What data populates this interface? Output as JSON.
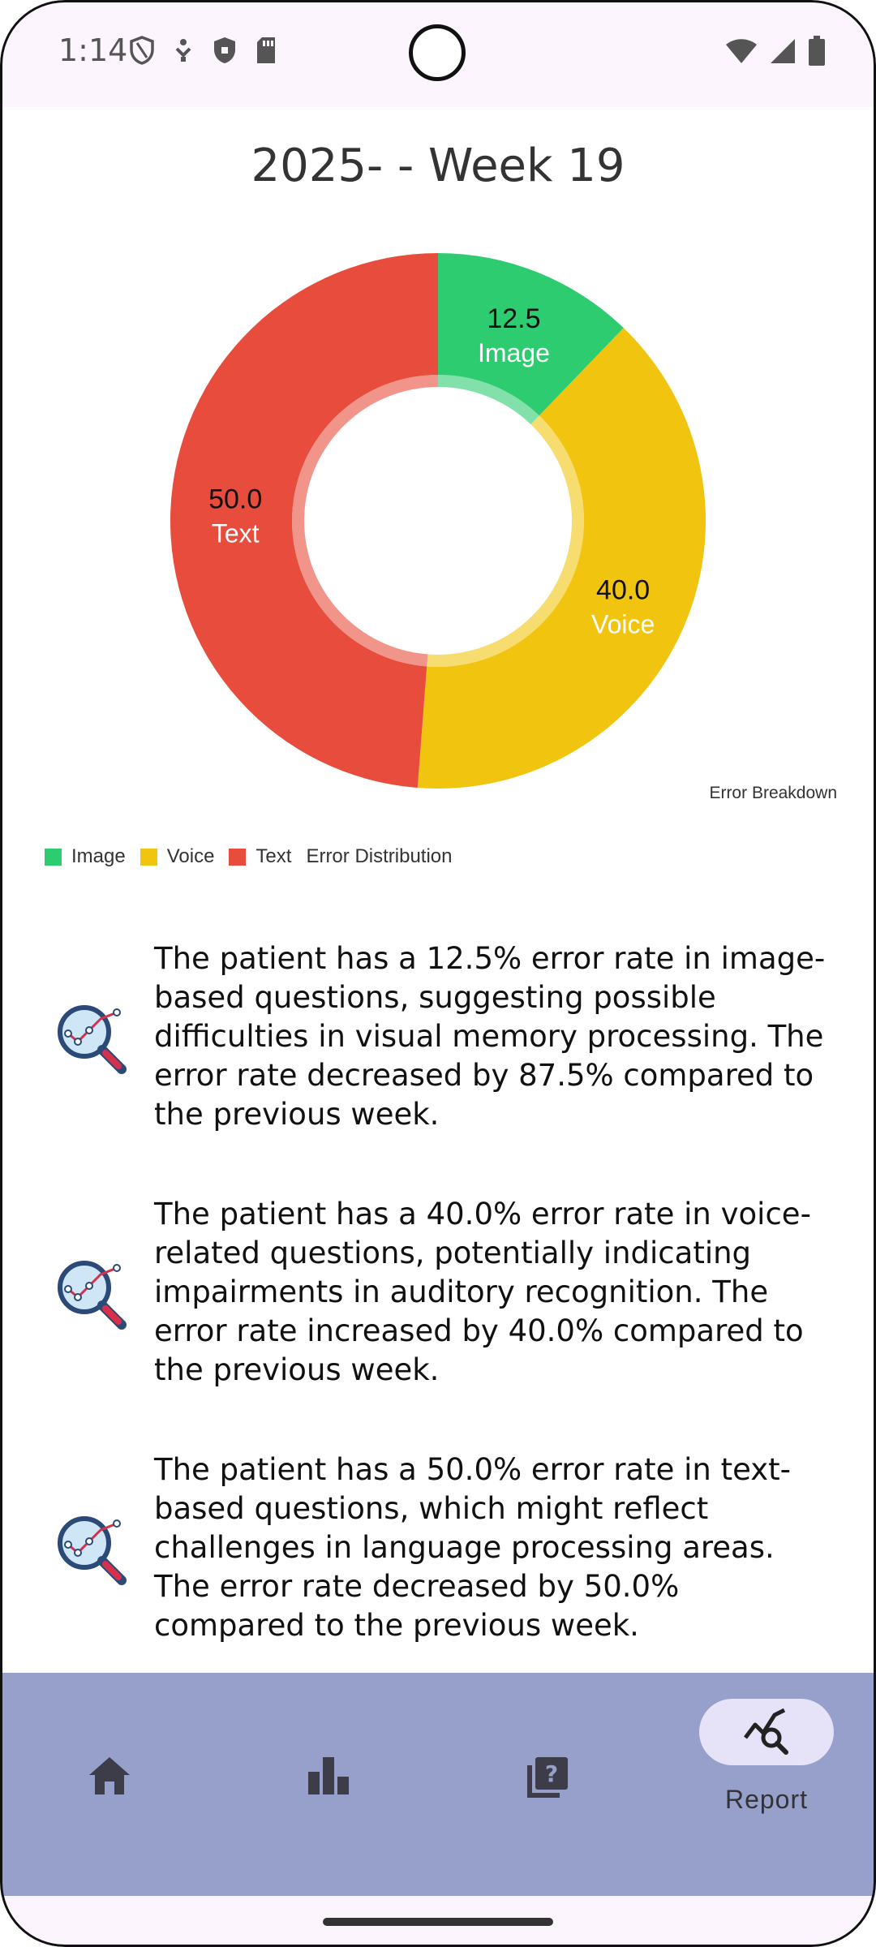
{
  "status_bar": {
    "time": "1:14"
  },
  "header": {
    "title": "2025- - Week 19"
  },
  "chart_data": {
    "type": "pie",
    "donut": true,
    "categories": [
      "Image",
      "Voice",
      "Text"
    ],
    "values": [
      12.5,
      40.0,
      50.0
    ],
    "value_labels": [
      "12.5",
      "40.0",
      "50.0"
    ],
    "colors": [
      "#2ecc71",
      "#f1c40f",
      "#e74c3c"
    ],
    "description": "Error Breakdown",
    "legend": {
      "placement": "bottom-left",
      "items": [
        "Image",
        "Voice",
        "Text"
      ],
      "trailing_label": "Error Distribution"
    }
  },
  "insights": [
    {
      "text": "The patient has a 12.5% error rate in image-based questions, suggesting possible difficulties in visual memory processing. The error rate decreased by 87.5% compared to the previous week."
    },
    {
      "text": "The patient has a 40.0% error rate in voice-related questions, potentially indicating impairments in auditory recognition. The error rate increased by 40.0% compared to the previous week."
    },
    {
      "text": "The patient has a 50.0% error rate in text-based questions, which might reflect challenges in language processing areas. The error rate decreased by 50.0% compared to the previous week."
    }
  ],
  "bottom_nav": {
    "items": [
      {
        "icon": "home-icon",
        "label": ""
      },
      {
        "icon": "bar-chart-icon",
        "label": ""
      },
      {
        "icon": "quiz-icon",
        "label": ""
      },
      {
        "icon": "report-icon",
        "label": "Report",
        "selected": true
      }
    ],
    "selected_color": "#e6e3f8",
    "background_color": "#979fcb"
  }
}
